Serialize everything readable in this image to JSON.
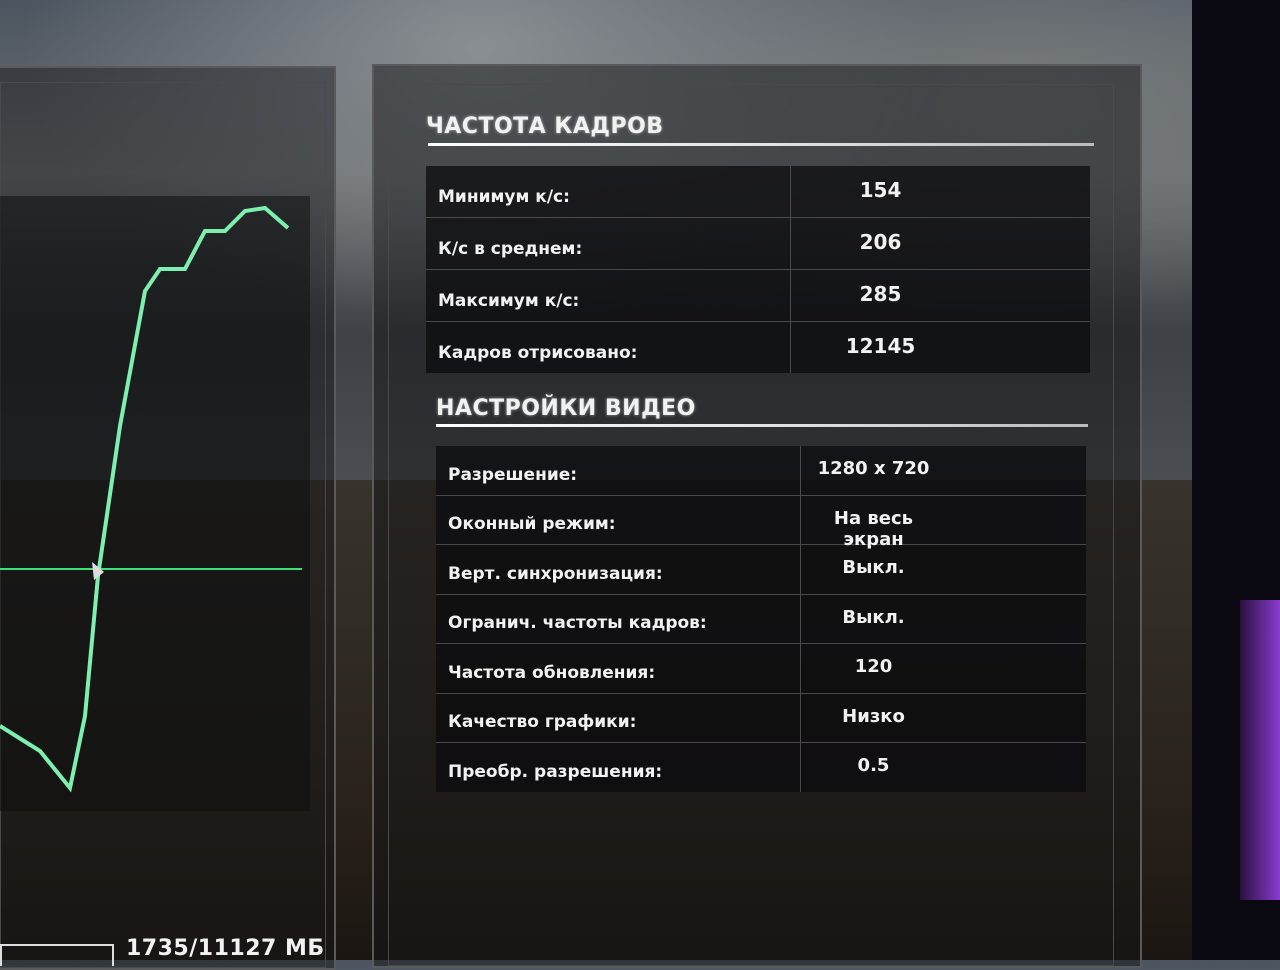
{
  "framerate": {
    "title": "ЧАСТОТА КАДРОВ",
    "rows": [
      {
        "label": "Минимум к/с:",
        "value": "154"
      },
      {
        "label": "К/с в среднем:",
        "value": "206"
      },
      {
        "label": "Максимум к/с:",
        "value": "285"
      },
      {
        "label": "Кадров отрисовано:",
        "value": "12145"
      }
    ]
  },
  "video": {
    "title": "НАСТРОЙКИ ВИДЕО",
    "rows": [
      {
        "label": "Разрешение:",
        "value": "1280 x 720"
      },
      {
        "label": "Оконный режим:",
        "value": "На весь экран"
      },
      {
        "label": "Верт. синхронизация:",
        "value": "Выкл."
      },
      {
        "label": "Огранич. частоты кадров:",
        "value": "Выкл."
      },
      {
        "label": "Частота обновления:",
        "value": "120"
      },
      {
        "label": "Качество графики:",
        "value": "Низко"
      },
      {
        "label": "Преобр. разрешения:",
        "value": "0.5"
      }
    ]
  },
  "memory": {
    "value": "1735/11127 МБ"
  },
  "colors": {
    "graph_line": "#7df0b0",
    "avg_line": "#3ee07a"
  }
}
